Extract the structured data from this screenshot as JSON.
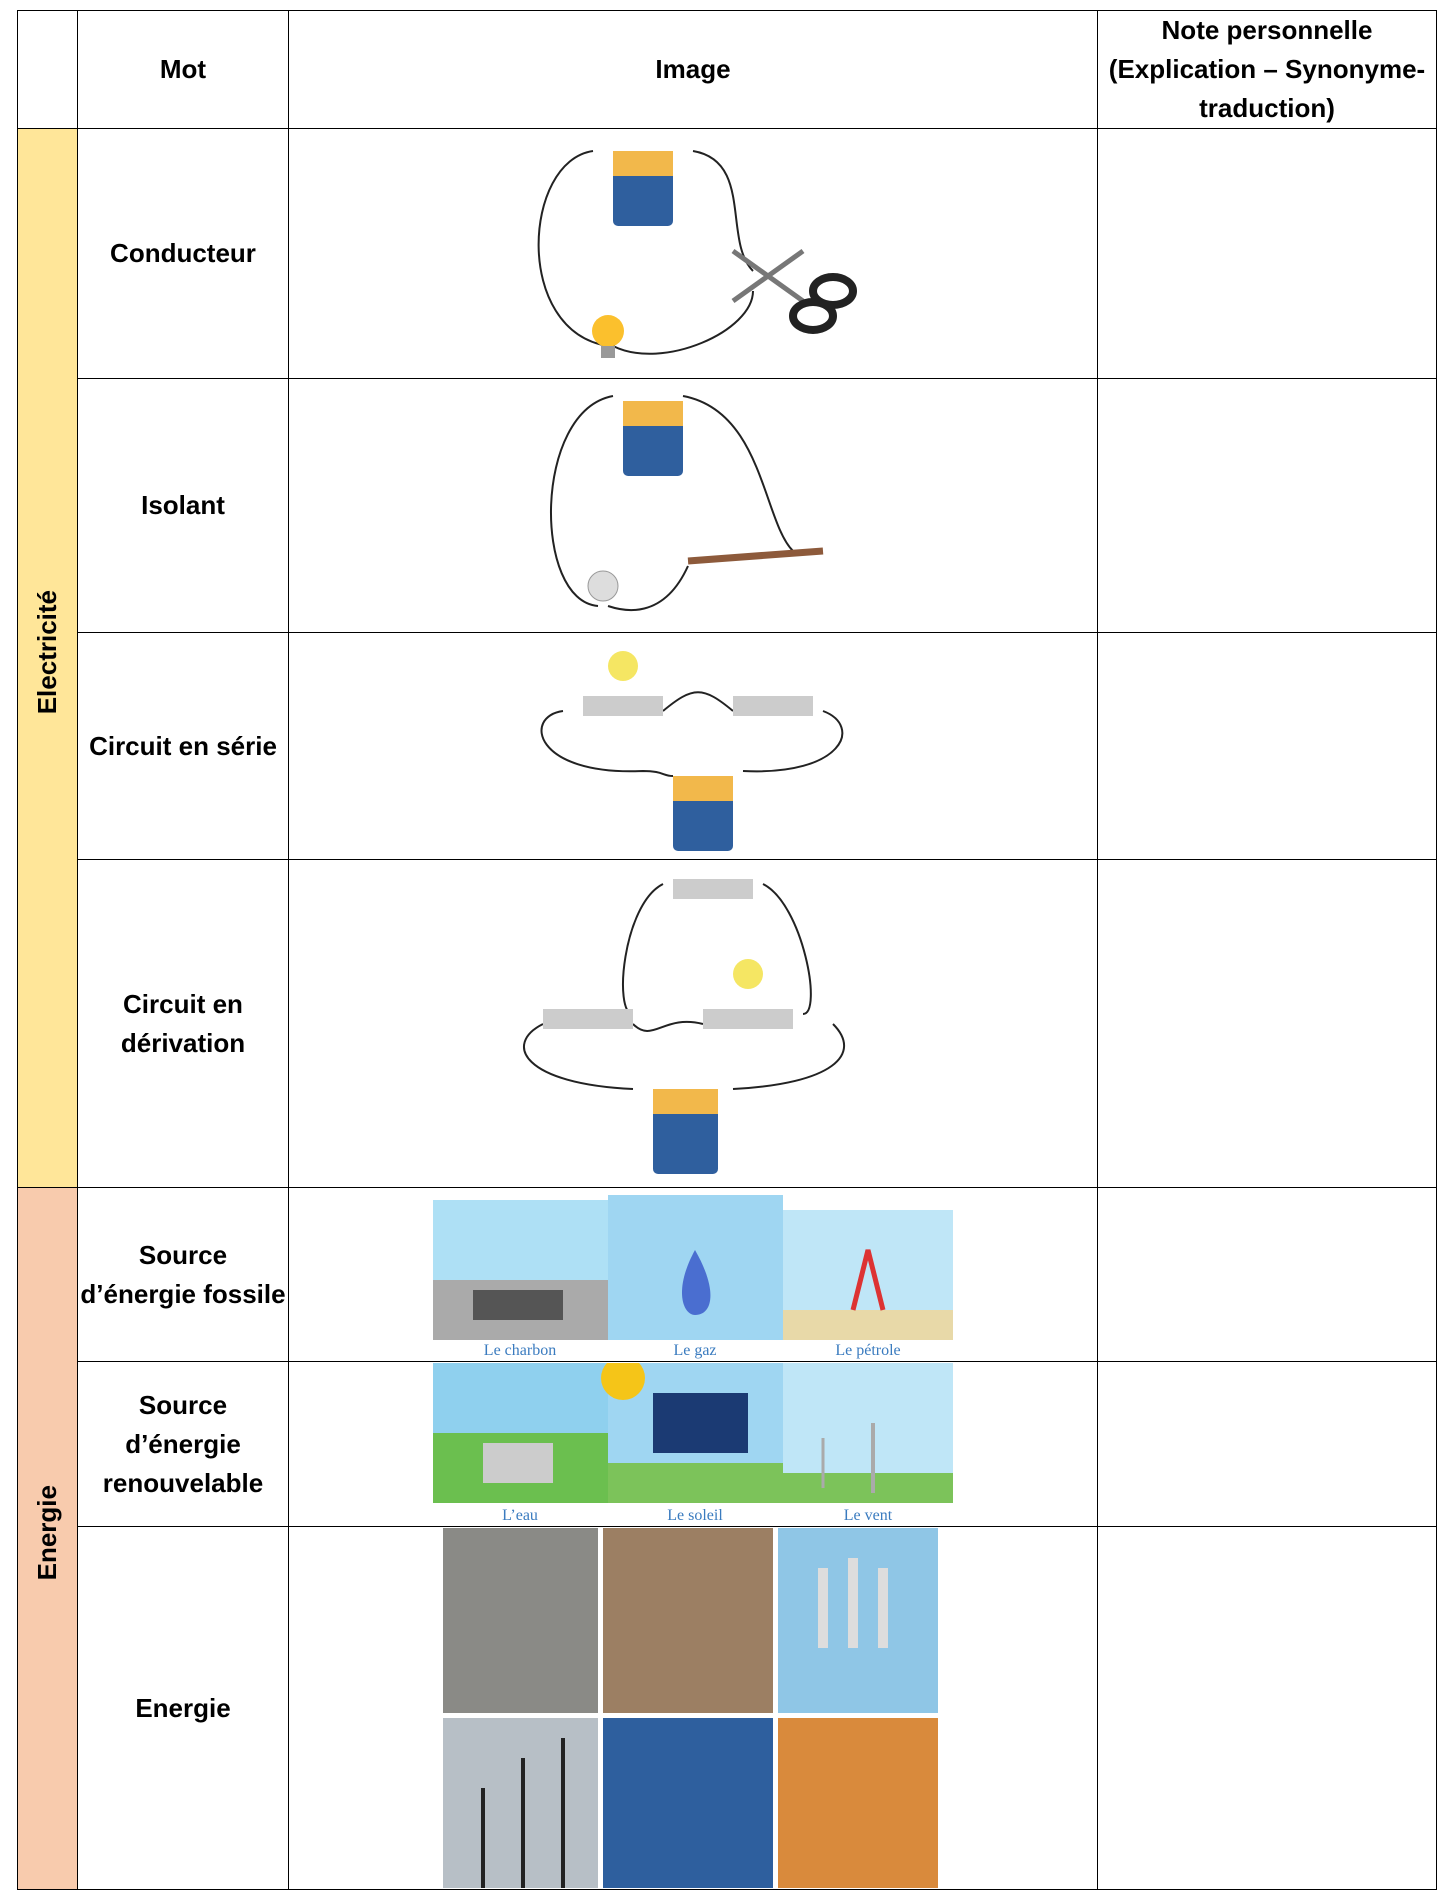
{
  "header": {
    "mot": "Mot",
    "image": "Image",
    "note": "Note personnelle (Explication – Synonyme-traduction)"
  },
  "sections": [
    {
      "label": "Electricité",
      "rows": [
        {
          "word": "Conducteur"
        },
        {
          "word": "Isolant"
        },
        {
          "word": "Circuit en série"
        },
        {
          "word": "Circuit en dérivation"
        }
      ]
    },
    {
      "label": "Energie",
      "rows": [
        {
          "word": "Source d’énergie fossile",
          "captions": [
            "Le charbon",
            "Le gaz",
            "Le pétrole"
          ]
        },
        {
          "word": "Source d’énergie renouvelable",
          "captions": [
            "L’eau",
            "Le soleil",
            "Le vent"
          ]
        },
        {
          "word": "Energie"
        }
      ]
    }
  ]
}
